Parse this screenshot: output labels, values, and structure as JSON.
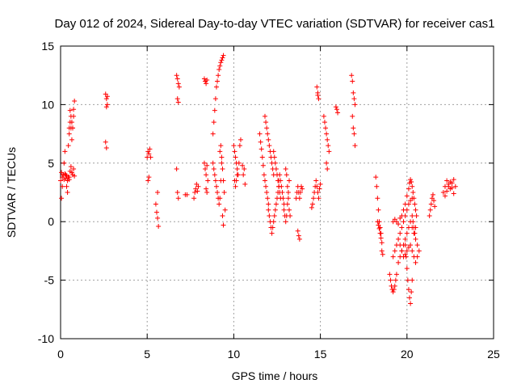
{
  "chart_data": {
    "type": "scatter",
    "title": "Day 012 of 2024, Sidereal Day-to-day VTEC variation (SDTVAR) for receiver cas1",
    "xlabel": "GPS time / hours",
    "ylabel": "SDTVAR / TECUs",
    "xlim": [
      0,
      25
    ],
    "ylim": [
      -10,
      15
    ],
    "xticks": [
      0,
      5,
      10,
      15,
      20,
      25
    ],
    "yticks": [
      -10,
      -5,
      0,
      5,
      10,
      15
    ],
    "grid": true,
    "marker": "+",
    "marker_color": "#ff0000",
    "series": [
      {
        "name": "SDTVAR",
        "tracks": [
          {
            "x": [
              0.05,
              0.1,
              0.15,
              0.2,
              0.25,
              0.3,
              0.35,
              0.4
            ],
            "y": [
              2.0,
              3.0,
              4.0,
              5.0,
              6.0,
              4.0,
              3.0,
              2.5
            ]
          },
          {
            "x": [
              0.0,
              0.05,
              0.1,
              0.15,
              0.2,
              0.25,
              0.3,
              0.35,
              0.4,
              0.45,
              0.5
            ],
            "y": [
              3.5,
              4.2,
              3.8,
              4.0,
              3.6,
              4.1,
              3.7,
              3.9,
              3.5,
              3.8,
              3.6
            ]
          },
          {
            "x": [
              0.45,
              0.5,
              0.55,
              0.6,
              0.65,
              0.7,
              0.75,
              0.5,
              0.55,
              0.6,
              0.65,
              0.7
            ],
            "y": [
              6.5,
              8.0,
              9.5,
              9.0,
              8.5,
              8.0,
              9.0,
              7.5,
              8.5,
              8.0,
              7.0,
              8.0
            ]
          },
          {
            "x": [
              0.5,
              0.55,
              0.6,
              0.65,
              0.7,
              0.75,
              0.8
            ],
            "y": [
              3.8,
              4.3,
              4.7,
              4.2,
              4.0,
              4.5,
              3.9
            ]
          },
          {
            "x": [
              0.75,
              0.8
            ],
            "y": [
              9.6,
              10.3
            ]
          },
          {
            "x": [
              2.6,
              2.65,
              2.7,
              2.65,
              2.7,
              2.6,
              2.65
            ],
            "y": [
              10.9,
              10.5,
              10.0,
              9.8,
              10.7,
              6.8,
              6.3
            ]
          },
          {
            "x": [
              5.0,
              5.05,
              5.1,
              5.15,
              5.2,
              5.05,
              5.1
            ],
            "y": [
              5.5,
              6.0,
              5.8,
              6.2,
              5.5,
              3.5,
              3.8
            ]
          },
          {
            "x": [
              5.5,
              5.55,
              5.6,
              5.6,
              5.65
            ],
            "y": [
              1.5,
              0.8,
              0.3,
              2.5,
              -0.4
            ]
          },
          {
            "x": [
              6.7,
              6.75,
              6.8,
              6.85,
              6.75,
              6.8,
              6.7,
              6.75,
              6.8
            ],
            "y": [
              12.5,
              12.2,
              11.8,
              11.5,
              10.5,
              10.2,
              4.5,
              2.5,
              2.0
            ]
          },
          {
            "x": [
              7.2,
              7.3,
              7.7,
              7.75,
              7.8,
              7.85,
              7.9,
              7.95
            ],
            "y": [
              2.3,
              2.3,
              2.0,
              2.5,
              2.8,
              3.2,
              2.6,
              3.0
            ]
          },
          {
            "x": [
              8.3,
              8.35,
              8.4,
              8.45,
              8.3,
              8.35,
              8.4,
              8.45,
              8.5,
              8.4,
              8.45
            ],
            "y": [
              12.2,
              12.0,
              11.8,
              12.1,
              5.0,
              4.5,
              4.0,
              4.8,
              3.5,
              2.8,
              2.5
            ]
          },
          {
            "x": [
              8.8,
              8.85,
              8.9,
              8.95,
              9.0,
              9.05,
              9.1,
              9.15,
              9.2,
              9.25,
              9.3,
              9.35,
              9.4
            ],
            "y": [
              7.5,
              8.5,
              9.5,
              10.5,
              11.5,
              12.0,
              12.5,
              13.0,
              13.3,
              13.6,
              13.8,
              14.0,
              14.2
            ]
          },
          {
            "x": [
              8.8,
              8.85,
              8.9,
              8.95,
              9.0,
              9.05,
              9.1,
              9.15,
              9.2,
              9.25,
              9.3
            ],
            "y": [
              5.0,
              4.5,
              4.0,
              3.5,
              3.0,
              2.5,
              2.0,
              1.5,
              2.0,
              3.5,
              5.0
            ]
          },
          {
            "x": [
              9.2,
              9.25,
              9.3,
              9.35,
              9.4,
              9.45,
              9.5,
              9.35,
              9.4
            ],
            "y": [
              6.0,
              6.5,
              5.5,
              4.5,
              3.5,
              2.5,
              1.0,
              0.5,
              -0.3
            ]
          },
          {
            "x": [
              10.0,
              10.05,
              10.1,
              10.15,
              10.2,
              10.25,
              10.3,
              10.35
            ],
            "y": [
              6.5,
              6.0,
              5.5,
              5.0,
              4.5,
              4.0,
              5.0,
              6.5
            ]
          },
          {
            "x": [
              10.05,
              10.1,
              10.15,
              10.2,
              10.4,
              10.5,
              10.55,
              10.6,
              10.65
            ],
            "y": [
              3.5,
              3.0,
              3.5,
              4.0,
              7.0,
              4.8,
              4.0,
              4.5,
              3.2
            ]
          },
          {
            "x": [
              11.5,
              11.55,
              11.6,
              11.65,
              11.7,
              11.75,
              11.8,
              11.85,
              11.9,
              11.95,
              12.0
            ],
            "y": [
              7.5,
              6.8,
              6.2,
              5.5,
              4.8,
              4.0,
              3.5,
              3.0,
              2.5,
              2.0,
              1.5
            ]
          },
          {
            "x": [
              11.8,
              11.85,
              11.9,
              11.95,
              12.0,
              12.05,
              12.1,
              12.15,
              12.2,
              12.25,
              12.3
            ],
            "y": [
              9.0,
              8.5,
              8.0,
              7.5,
              7.0,
              6.5,
              6.0,
              5.5,
              5.0,
              4.5,
              4.0
            ]
          },
          {
            "x": [
              12.0,
              12.05,
              12.1,
              12.15,
              12.2,
              12.25,
              12.3,
              12.35,
              12.4,
              12.45,
              12.5,
              12.55,
              12.6
            ],
            "y": [
              1.0,
              0.5,
              0.0,
              -0.5,
              -1.0,
              -0.5,
              0.0,
              0.5,
              1.0,
              1.5,
              2.0,
              2.5,
              3.0
            ]
          },
          {
            "x": [
              12.3,
              12.35,
              12.4,
              12.45,
              12.5,
              12.55,
              12.6,
              12.65,
              12.7
            ],
            "y": [
              6.0,
              5.5,
              5.0,
              4.5,
              4.0,
              3.5,
              3.0,
              2.5,
              2.0
            ]
          },
          {
            "x": [
              12.6,
              12.65,
              12.7,
              12.75,
              12.8,
              12.85,
              12.9
            ],
            "y": [
              3.5,
              4.0,
              3.5,
              3.0,
              2.5,
              2.0,
              1.5
            ]
          },
          {
            "x": [
              12.9,
              12.95,
              13.0,
              13.05,
              13.1,
              13.15,
              13.2
            ],
            "y": [
              1.0,
              0.5,
              0.0,
              0.5,
              1.5,
              2.5,
              3.5
            ]
          },
          {
            "x": [
              13.0,
              13.05,
              13.1,
              13.15,
              13.2,
              13.25
            ],
            "y": [
              4.5,
              4.0,
              3.0,
              2.0,
              1.0,
              0.5
            ]
          },
          {
            "x": [
              13.6,
              13.65,
              13.7,
              13.75,
              13.8,
              13.85,
              13.9,
              13.95,
              13.7,
              13.75,
              13.8
            ],
            "y": [
              2.0,
              2.5,
              3.0,
              2.5,
              2.0,
              2.5,
              3.0,
              2.8,
              -0.8,
              -1.2,
              -1.5
            ]
          },
          {
            "x": [
              14.5,
              14.55,
              14.6,
              14.65,
              14.7,
              14.75,
              14.8,
              14.85,
              14.9,
              14.95,
              15.0
            ],
            "y": [
              1.2,
              1.5,
              2.0,
              2.5,
              3.0,
              3.5,
              3.0,
              2.5,
              2.0,
              2.8,
              3.2
            ]
          },
          {
            "x": [
              14.8,
              14.85,
              14.9,
              14.85
            ],
            "y": [
              11.5,
              11.0,
              10.5,
              10.8
            ]
          },
          {
            "x": [
              15.2,
              15.25,
              15.3,
              15.35,
              15.4,
              15.45,
              15.5,
              15.35,
              15.4
            ],
            "y": [
              9.0,
              8.5,
              8.0,
              7.5,
              7.0,
              6.5,
              6.0,
              5.0,
              4.5
            ]
          },
          {
            "x": [
              15.9,
              15.95,
              16.0
            ],
            "y": [
              9.8,
              9.6,
              9.3
            ]
          },
          {
            "x": [
              16.8,
              16.85,
              16.9,
              16.95,
              17.0,
              16.85,
              16.9,
              16.95,
              17.0
            ],
            "y": [
              12.5,
              12.0,
              11.0,
              10.5,
              10.0,
              9.0,
              8.0,
              7.5,
              6.5
            ]
          },
          {
            "x": [
              18.2,
              18.25,
              18.3,
              18.35,
              18.4,
              18.45,
              18.5,
              18.55
            ],
            "y": [
              3.8,
              3.0,
              2.0,
              1.0,
              0.0,
              -0.5,
              -1.0,
              -2.5
            ]
          },
          {
            "x": [
              18.3,
              18.35,
              18.4,
              18.45,
              18.5,
              18.55,
              18.6
            ],
            "y": [
              0.0,
              -0.3,
              -0.6,
              -1.0,
              -1.4,
              -1.8,
              -2.8
            ]
          },
          {
            "x": [
              19.0,
              19.05,
              19.1,
              19.15,
              19.2,
              19.25,
              19.3,
              19.35,
              19.4
            ],
            "y": [
              -4.5,
              -5.0,
              -5.5,
              -5.8,
              -6.0,
              -5.8,
              -5.5,
              -5.0,
              -4.5
            ]
          },
          {
            "x": [
              19.2,
              19.3,
              19.4,
              19.5,
              19.6,
              19.7,
              19.8,
              19.9,
              20.0,
              20.1,
              20.2,
              20.3
            ],
            "y": [
              -3.0,
              -2.5,
              -2.0,
              -1.5,
              -1.0,
              -0.5,
              0.0,
              0.5,
              1.0,
              1.5,
              1.8,
              2.0
            ]
          },
          {
            "x": [
              19.2,
              19.3,
              19.4,
              19.5,
              19.6,
              19.7,
              19.8,
              19.9,
              20.0
            ],
            "y": [
              0.0,
              0.2,
              0.0,
              -0.2,
              0.3,
              0.5,
              1.0,
              1.5,
              2.2
            ]
          },
          {
            "x": [
              19.5,
              19.6,
              19.7,
              19.8,
              19.9,
              20.0,
              20.1,
              20.2,
              20.3,
              20.4,
              20.5,
              20.6
            ],
            "y": [
              -3.5,
              -3.0,
              -2.5,
              -2.0,
              -1.5,
              -1.0,
              -0.5,
              0.0,
              -0.5,
              -1.0,
              -1.5,
              -2.0
            ]
          },
          {
            "x": [
              19.6,
              19.7,
              19.8,
              19.9,
              20.0,
              20.1,
              20.2,
              20.3,
              20.4,
              20.5,
              20.6,
              20.7
            ],
            "y": [
              -2.0,
              -2.5,
              -3.0,
              -2.8,
              -2.5,
              -2.2,
              -2.0,
              -2.5,
              -3.0,
              -3.5,
              -3.0,
              -2.5
            ]
          },
          {
            "x": [
              19.9,
              19.95,
              20.0,
              20.05,
              20.1,
              20.15,
              20.2,
              20.25,
              20.3
            ],
            "y": [
              -2.0,
              -3.0,
              -4.0,
              -5.0,
              -5.8,
              -6.5,
              -7.0,
              -6.0,
              -5.0
            ]
          },
          {
            "x": [
              20.1,
              20.15,
              20.2,
              20.25,
              20.3,
              20.35,
              20.4,
              20.45,
              20.5
            ],
            "y": [
              2.8,
              3.3,
              3.6,
              3.4,
              3.0,
              2.5,
              2.0,
              1.5,
              1.0
            ]
          },
          {
            "x": [
              20.3,
              20.35,
              20.4,
              20.45,
              20.5,
              20.55
            ],
            "y": [
              0.5,
              0.0,
              -0.5,
              -1.0,
              -0.5,
              0.5
            ]
          },
          {
            "x": [
              21.3,
              21.35,
              21.4,
              21.45,
              21.5,
              21.55,
              21.6
            ],
            "y": [
              0.5,
              1.0,
              1.5,
              2.0,
              2.3,
              1.8,
              1.3
            ]
          },
          {
            "x": [
              22.1,
              22.2,
              22.3,
              22.4,
              22.5,
              22.6,
              22.7,
              22.8,
              22.2,
              22.3,
              22.4,
              22.5,
              22.6,
              22.7
            ],
            "y": [
              2.5,
              3.0,
              3.5,
              3.2,
              2.8,
              3.3,
              3.6,
              3.0,
              2.2,
              2.6,
              3.0,
              3.4,
              2.9,
              2.4
            ]
          }
        ]
      }
    ]
  }
}
